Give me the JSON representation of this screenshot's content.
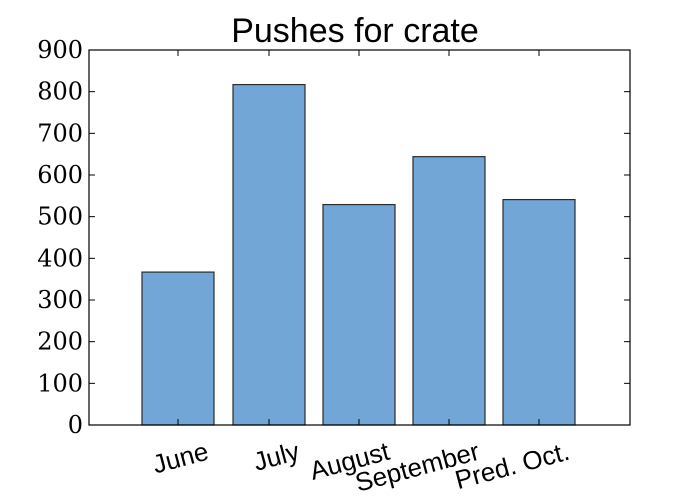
{
  "chart_data": {
    "type": "bar",
    "title": "Pushes for crate",
    "xlabel": "",
    "ylabel": "",
    "categories": [
      "June",
      "July",
      "August",
      "September",
      "Pred. Oct."
    ],
    "values": [
      367,
      817,
      529,
      644,
      541
    ],
    "ylim": [
      0,
      900
    ],
    "yticks": [
      "0",
      "100",
      "200",
      "300",
      "400",
      "500",
      "600",
      "700",
      "800",
      "900"
    ],
    "grid": false,
    "colors": {
      "bar": "#72a6d6",
      "edge": "#2b2b2b"
    }
  }
}
